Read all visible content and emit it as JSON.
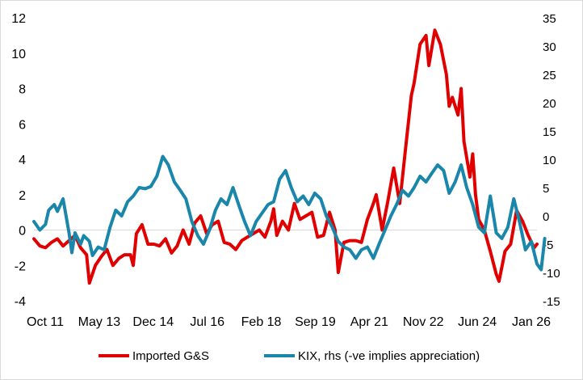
{
  "chart_data": {
    "type": "line",
    "x_ticks": [
      "Oct 11",
      "May 13",
      "Dec 14",
      "Jul 16",
      "Feb 18",
      "Sep 19",
      "Apr 21",
      "Nov 22",
      "Jun 24",
      "Jan 26"
    ],
    "x_range": [
      "2011-10",
      "2026-01"
    ],
    "ylim_left": [
      -4,
      12
    ],
    "yticks_left": [
      -4,
      -2,
      0,
      2,
      4,
      6,
      8,
      10,
      12
    ],
    "ylim_right": [
      -15,
      35
    ],
    "yticks_right": [
      -15,
      -10,
      -5,
      0,
      5,
      10,
      15,
      20,
      25,
      30,
      35
    ],
    "grid": false,
    "legend_position": "bottom",
    "series": [
      {
        "name": "Imported G&S",
        "axis": "left",
        "color": "#e00000",
        "points": [
          [
            2011.75,
            -0.5
          ],
          [
            2011.92,
            -0.9
          ],
          [
            2012.08,
            -1.0
          ],
          [
            2012.25,
            -0.7
          ],
          [
            2012.42,
            -0.5
          ],
          [
            2012.58,
            -0.9
          ],
          [
            2012.75,
            -0.6
          ],
          [
            2012.92,
            -0.3
          ],
          [
            2013.08,
            -1.0
          ],
          [
            2013.25,
            -1.4
          ],
          [
            2013.33,
            -3.0
          ],
          [
            2013.5,
            -2.0
          ],
          [
            2013.67,
            -1.5
          ],
          [
            2013.83,
            -1.1
          ],
          [
            2014.0,
            -2.0
          ],
          [
            2014.17,
            -1.6
          ],
          [
            2014.33,
            -1.4
          ],
          [
            2014.5,
            -1.4
          ],
          [
            2014.58,
            -2.0
          ],
          [
            2014.67,
            -0.2
          ],
          [
            2014.83,
            0.3
          ],
          [
            2015.0,
            -0.8
          ],
          [
            2015.17,
            -0.8
          ],
          [
            2015.33,
            -0.9
          ],
          [
            2015.5,
            -0.5
          ],
          [
            2015.67,
            -1.3
          ],
          [
            2015.83,
            -0.9
          ],
          [
            2016.0,
            0.0
          ],
          [
            2016.17,
            -0.8
          ],
          [
            2016.33,
            0.4
          ],
          [
            2016.5,
            0.8
          ],
          [
            2016.67,
            -0.2
          ],
          [
            2016.83,
            0.3
          ],
          [
            2017.0,
            0.5
          ],
          [
            2017.17,
            -0.7
          ],
          [
            2017.33,
            -0.8
          ],
          [
            2017.5,
            -1.1
          ],
          [
            2017.67,
            -0.6
          ],
          [
            2017.83,
            -0.4
          ],
          [
            2018.0,
            -0.2
          ],
          [
            2018.17,
            0.0
          ],
          [
            2018.33,
            -0.4
          ],
          [
            2018.5,
            0.5
          ],
          [
            2018.58,
            1.2
          ],
          [
            2018.67,
            -0.3
          ],
          [
            2018.83,
            0.5
          ],
          [
            2019.0,
            0.0
          ],
          [
            2019.17,
            1.5
          ],
          [
            2019.33,
            0.6
          ],
          [
            2019.5,
            0.8
          ],
          [
            2019.67,
            1.0
          ],
          [
            2019.83,
            -0.4
          ],
          [
            2020.0,
            -0.3
          ],
          [
            2020.17,
            1.0
          ],
          [
            2020.33,
            0.0
          ],
          [
            2020.42,
            -2.4
          ],
          [
            2020.58,
            -0.7
          ],
          [
            2020.75,
            -0.6
          ],
          [
            2020.92,
            -0.6
          ],
          [
            2021.08,
            -0.7
          ],
          [
            2021.25,
            0.6
          ],
          [
            2021.42,
            1.5
          ],
          [
            2021.5,
            2.0
          ],
          [
            2021.67,
            0.0
          ],
          [
            2021.83,
            1.6
          ],
          [
            2022.0,
            3.5
          ],
          [
            2022.17,
            1.5
          ],
          [
            2022.33,
            4.5
          ],
          [
            2022.5,
            7.6
          ],
          [
            2022.58,
            8.3
          ],
          [
            2022.75,
            10.5
          ],
          [
            2022.92,
            11.0
          ],
          [
            2023.0,
            9.3
          ],
          [
            2023.17,
            11.3
          ],
          [
            2023.33,
            10.5
          ],
          [
            2023.5,
            8.8
          ],
          [
            2023.58,
            7.0
          ],
          [
            2023.67,
            7.5
          ],
          [
            2023.83,
            6.5
          ],
          [
            2023.92,
            8.0
          ],
          [
            2024.0,
            5.0
          ],
          [
            2024.17,
            3.0
          ],
          [
            2024.25,
            4.3
          ],
          [
            2024.33,
            2.0
          ],
          [
            2024.42,
            0.6
          ],
          [
            2024.58,
            0.0
          ],
          [
            2024.75,
            -1.2
          ],
          [
            2024.92,
            -2.5
          ],
          [
            2025.0,
            -2.9
          ],
          [
            2025.17,
            -1.2
          ],
          [
            2025.33,
            -0.8
          ],
          [
            2025.42,
            0.2
          ],
          [
            2025.5,
            1.1
          ],
          [
            2025.67,
            0.5
          ],
          [
            2025.83,
            -0.3
          ],
          [
            2026.0,
            -1.0
          ],
          [
            2026.08,
            -0.8
          ]
        ]
      },
      {
        "name": "KIX, rhs (-ve implies appreciation)",
        "axis": "right",
        "color": "#1a87aa",
        "points": [
          [
            2011.75,
            -1.0
          ],
          [
            2011.92,
            -2.5
          ],
          [
            2012.08,
            -1.5
          ],
          [
            2012.17,
            1.0
          ],
          [
            2012.33,
            2.0
          ],
          [
            2012.42,
            0.8
          ],
          [
            2012.58,
            3.0
          ],
          [
            2012.75,
            -3.0
          ],
          [
            2012.83,
            -6.5
          ],
          [
            2012.92,
            -3.0
          ],
          [
            2013.08,
            -5.0
          ],
          [
            2013.17,
            -3.5
          ],
          [
            2013.33,
            -4.5
          ],
          [
            2013.42,
            -7.0
          ],
          [
            2013.58,
            -5.5
          ],
          [
            2013.75,
            -6.0
          ],
          [
            2013.92,
            -2.0
          ],
          [
            2014.08,
            1.0
          ],
          [
            2014.25,
            0.0
          ],
          [
            2014.42,
            2.5
          ],
          [
            2014.58,
            3.5
          ],
          [
            2014.75,
            5.0
          ],
          [
            2014.92,
            4.8
          ],
          [
            2015.08,
            5.2
          ],
          [
            2015.25,
            7.0
          ],
          [
            2015.42,
            10.5
          ],
          [
            2015.58,
            9.0
          ],
          [
            2015.75,
            6.0
          ],
          [
            2015.92,
            4.5
          ],
          [
            2016.08,
            3.0
          ],
          [
            2016.25,
            -1.0
          ],
          [
            2016.42,
            -3.5
          ],
          [
            2016.58,
            -5.0
          ],
          [
            2016.75,
            -2.5
          ],
          [
            2016.92,
            1.0
          ],
          [
            2017.08,
            3.0
          ],
          [
            2017.25,
            2.0
          ],
          [
            2017.42,
            5.0
          ],
          [
            2017.58,
            2.0
          ],
          [
            2017.75,
            -1.0
          ],
          [
            2017.92,
            -3.5
          ],
          [
            2018.08,
            -1.0
          ],
          [
            2018.25,
            0.5
          ],
          [
            2018.42,
            2.0
          ],
          [
            2018.58,
            2.5
          ],
          [
            2018.75,
            6.5
          ],
          [
            2018.92,
            8.0
          ],
          [
            2019.08,
            5.0
          ],
          [
            2019.25,
            2.5
          ],
          [
            2019.42,
            3.5
          ],
          [
            2019.58,
            2.0
          ],
          [
            2019.75,
            4.0
          ],
          [
            2019.92,
            3.0
          ],
          [
            2020.08,
            0.0
          ],
          [
            2020.25,
            -2.0
          ],
          [
            2020.42,
            -4.5
          ],
          [
            2020.58,
            -5.5
          ],
          [
            2020.75,
            -6.0
          ],
          [
            2020.92,
            -7.5
          ],
          [
            2021.08,
            -6.0
          ],
          [
            2021.25,
            -5.5
          ],
          [
            2021.42,
            -7.5
          ],
          [
            2021.58,
            -5.0
          ],
          [
            2021.75,
            -2.5
          ],
          [
            2021.92,
            0.0
          ],
          [
            2022.08,
            2.0
          ],
          [
            2022.25,
            4.5
          ],
          [
            2022.42,
            3.5
          ],
          [
            2022.58,
            5.0
          ],
          [
            2022.75,
            7.0
          ],
          [
            2022.92,
            6.0
          ],
          [
            2023.08,
            7.5
          ],
          [
            2023.25,
            9.0
          ],
          [
            2023.42,
            8.0
          ],
          [
            2023.58,
            4.0
          ],
          [
            2023.75,
            6.0
          ],
          [
            2023.92,
            9.0
          ],
          [
            2024.08,
            5.0
          ],
          [
            2024.25,
            2.0
          ],
          [
            2024.42,
            -2.0
          ],
          [
            2024.58,
            -3.0
          ],
          [
            2024.75,
            3.5
          ],
          [
            2024.92,
            -3.0
          ],
          [
            2025.08,
            -4.0
          ],
          [
            2025.25,
            -2.0
          ],
          [
            2025.42,
            3.0
          ],
          [
            2025.58,
            -1.0
          ],
          [
            2025.75,
            -6.0
          ],
          [
            2025.92,
            -4.5
          ],
          [
            2026.08,
            -8.5
          ],
          [
            2026.2,
            -9.5
          ],
          [
            2026.3,
            -4.0
          ]
        ]
      }
    ]
  }
}
